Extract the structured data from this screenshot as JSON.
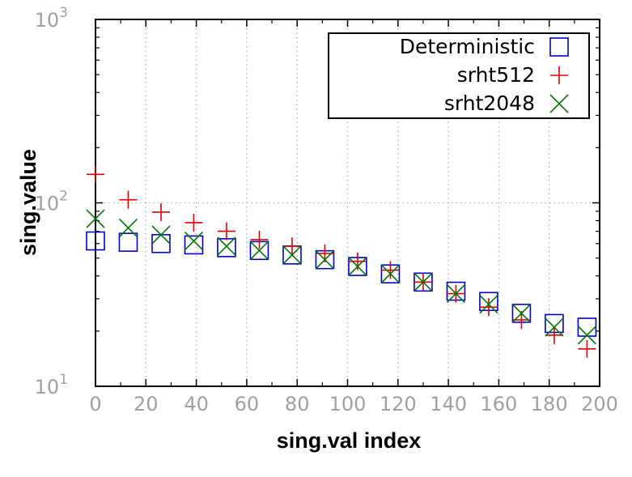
{
  "chart_data": {
    "type": "scatter",
    "xlabel": "sing.val index",
    "ylabel": "sing.value",
    "xlim": [
      0,
      200
    ],
    "ylim": [
      10,
      1000
    ],
    "yscale": "log",
    "grid": true,
    "legend_position": "top-right",
    "x_ticks": [
      "0",
      "20",
      "40",
      "60",
      "80",
      "100",
      "120",
      "140",
      "160",
      "180",
      "200"
    ],
    "y_ticks": [
      {
        "base": "10",
        "exp": "1"
      },
      {
        "base": "10",
        "exp": "2"
      },
      {
        "base": "10",
        "exp": "3"
      }
    ],
    "series": [
      {
        "name": "Deterministic",
        "marker": "square",
        "color": "#0000cc",
        "x": [
          0,
          13,
          26,
          39,
          52,
          65,
          78,
          91,
          104,
          117,
          130,
          143,
          156,
          169,
          182,
          195
        ],
        "values": [
          62,
          61,
          60,
          59,
          57,
          55,
          52,
          49,
          45,
          41,
          37,
          33,
          29,
          25,
          22,
          21
        ]
      },
      {
        "name": "srht512",
        "marker": "plus",
        "color": "#dd0000",
        "x": [
          0,
          13,
          26,
          39,
          52,
          65,
          78,
          91,
          104,
          117,
          130,
          143,
          156,
          169,
          182,
          195
        ],
        "values": [
          143,
          104,
          89,
          78,
          70,
          63,
          58,
          53,
          48,
          43,
          37,
          32,
          27,
          23,
          19,
          16
        ]
      },
      {
        "name": "srht2048",
        "marker": "x",
        "color": "#007700",
        "x": [
          0,
          13,
          26,
          39,
          52,
          65,
          78,
          91,
          104,
          117,
          130,
          143,
          156,
          169,
          182,
          195
        ],
        "values": [
          82,
          73,
          67,
          62,
          58,
          55,
          52,
          49,
          45,
          41,
          37,
          32,
          28,
          25,
          21,
          19
        ]
      }
    ]
  }
}
